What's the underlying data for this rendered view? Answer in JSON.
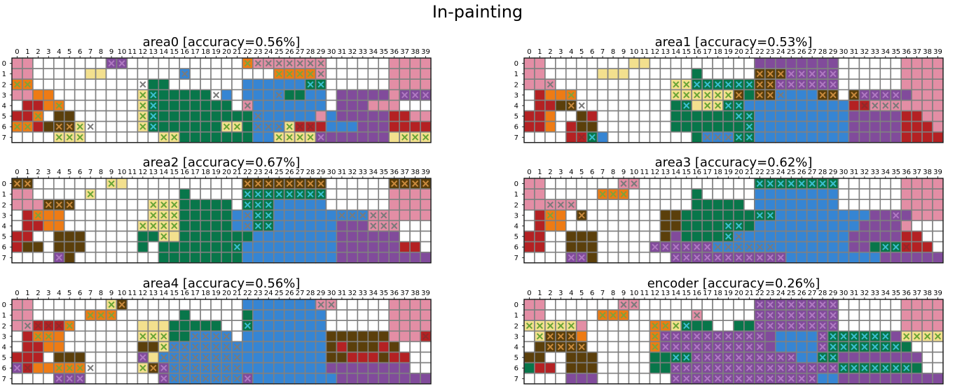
{
  "suptitle": "In-painting",
  "colors": {
    "0": "#ffffff",
    "1": "#e38ea5",
    "2": "#ee7b14",
    "3": "#b42123",
    "4": "#5b3f0b",
    "5": "#f3e08e",
    "6": "#08764a",
    "7": "#3685d3",
    "8": "#814b9b",
    "grid_line": "#808080"
  },
  "mark_colors": {
    "2": "#7fa23b",
    "3": "#8f2a2a",
    "4": "#c98a3d",
    "5": "#67a335",
    "6": "#3cbfd0",
    "8": "#b07ac2"
  },
  "chart_data": {
    "type": "heatmap",
    "x_ticks": [
      "0",
      "1",
      "2",
      "3",
      "4",
      "5",
      "6",
      "7",
      "8",
      "9",
      "10",
      "11",
      "12",
      "13",
      "14",
      "15",
      "16",
      "17",
      "18",
      "19",
      "20",
      "21",
      "22",
      "23",
      "24",
      "25",
      "26",
      "27",
      "28",
      "29",
      "30",
      "31",
      "32",
      "33",
      "34",
      "35",
      "36",
      "37",
      "38",
      "39"
    ],
    "y_ticks": [
      "0",
      "1",
      "2",
      "3",
      "4",
      "5",
      "6",
      "7"
    ],
    "panels": [
      {
        "title": "area0 [accuracy=0.56%]",
        "grid": [
          "1100000008800000000000211111110000001111",
          "1100000550000000700000000222210000001111",
          "2200000000000660000000777777660000001111",
          "1122000000005666666070777766770888881888",
          "0332200000005666666660177777770888111000",
          "3320440000005666666666677777717888883311",
          "2234445000005666666655677753337778883333",
          "0000555000000055666666677555588888885555"
        ],
        "marks": [
          "0000000001100000000000111111110000000000",
          "0000000000000000100000000111110000000000",
          "1100000000001000000000000000110000000000",
          "0000000000001100000100000100000000000111",
          "0000100000001100000000100000000000000000",
          "0010000000001100000000010000000000000000",
          "1100111100001100000011011111100000000000",
          "0000111000000011000000000111110000000111"
        ]
      },
      {
        "title": "area1 [accuracy=0.53%]",
        "grid": [
          "1100000000550000000000888888880000001111",
          "1100000555000000600000444888880000001111",
          "1110000000000055666666448888880000001111",
          "0322200000000055555546447777440488888111",
          "0334400000000066555667777777777331111111",
          "3320043000000066666666777777777888883311",
          "3320344000000066666666777777777888883331",
          "0000336700000000677766777777777888883333"
        ],
        "marks": [
          "0000000000000000000000000000000000000000",
          "0000000000000000000000111111110000000000",
          "0010000000000011111111111111110000000000",
          "0000100000000011111110111000110111110000",
          "0000110000000001011110000000000011110000",
          "0000000000000000000011000000000000000000",
          "0000000000000000000001000000000000000000",
          "0000011000000000011111000000000000000000"
        ]
      },
      {
        "title": "area2 [accuracy=0.67%]",
        "grid": [
          "4400000005500000000000444444440000004444",
          "1100000500000000600000666666660000001111",
          "1114440000000555666660666777770000001111",
          "0322200000000555666667766777777777111111",
          "0332200000005555666667766777777888111000",
          "3300444000006655666666677777777888888000",
          "3440444000006066666666777777777888888330",
          "0000840000000066666666777777777888888888"
        ],
        "marks": [
          "1100000001000000000000111111110000001111",
          "0000000100000000000000111111110000000000",
          "0001110000000111000000111000000000000000",
          "0010000000000111000000111000000111110000",
          "0000000000001111000000111000000000111000",
          "0000000000000010000000000000000000000000",
          "0000000000000000000001000000000000000000",
          "0000100000000000000000000000000000000000"
        ]
      },
      {
        "title": "area3 [accuracy=0.62%]",
        "grid": [
          "1100000001100000000000666666660000001111",
          "1100000222000000600000777777770000001111",
          "1111100000000000666660777777770000001111",
          "0322040000000446666666667777777778888111",
          "0322000000000446666666777777777788881000",
          "3300444000000486666677777777777888883300",
          "3300444000008888887777777777777886663330",
          "0000884000000088888888888777777777888888"
        ],
        "marks": [
          "0000000001100000000000111111110000000000",
          "0000000111000000000000000000000000000000",
          "0011100000000000000000000000000000000000",
          "0010010000000000000000110000000000010000",
          "0000000000000000000110000000000000000000",
          "0000000000000000000110000000000000000000",
          "0000000000001111111111110000000000111000",
          "0000110000000011111111111000000000000000"
        ]
      },
      {
        "title": "area4 [accuracy=0.56%]",
        "grid": [
          "1100000005400000000000777777711000001111",
          "1100000222000000600000677777770000001111",
          "1133320000005556666600677777770000001111",
          "0322200000005556677770777777774444441113",
          "0332200000004457777777777777774344434000",
          "3330444000008577777777777777774433343300",
          "8322222000005487777777777777778888888800",
          "0000888000000087777777877777777888888888"
        ],
        "marks": [
          "0000000001100000000000000000011000000000",
          "0000000111000000000000000000000000000000",
          "0111110000000000000000100000000000000000",
          "0011000000001110011110000000000000000001",
          "0000000000000011111111000000000000000000",
          "0000000000001011111111000000000000000000",
          "1100111100001111111111000000000000000000",
          "0000111000000011111111100000000000000000"
        ]
      },
      {
        "title": "encoder [accuracy=0.26%]",
        "grid": [
          "1100000001100000000000888888880000001111",
          "1100000222000000100000888888880000001111",
          "5555510000002256660066888888880000001111",
          "0544420000002888888888887777866666685555",
          "0444440000002888888888887777866666666000",
          "4400444000006666888888888877668888888800",
          "6330444000006688888888888888886666666600",
          "0000888000000088888888888888778888888888"
        ],
        "marks": [
          "0000000001100000000000111111110000000000",
          "0000000111000000100000111111110000000000",
          "1111100000001111000000111111110000000000",
          "0111100000001111111111100000111111101111",
          "0011110000001111111111100000111111110000",
          "0000000000000011111111111100110000000000",
          "0000000000000011111111111111111111111000",
          "0000000000000011111111111111000000000000"
        ]
      }
    ]
  }
}
